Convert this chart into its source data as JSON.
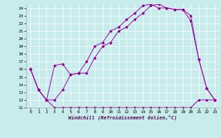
{
  "xlabel": "Windchill (Refroidissement éolien,°C)",
  "background_color": "#c8ecec",
  "line_color": "#990099",
  "xlim": [
    -0.5,
    23.5
  ],
  "ylim": [
    11,
    24.5
  ],
  "yticks": [
    11,
    12,
    13,
    14,
    15,
    16,
    17,
    18,
    19,
    20,
    21,
    22,
    23,
    24
  ],
  "xticks": [
    0,
    1,
    2,
    3,
    4,
    5,
    6,
    7,
    8,
    9,
    10,
    11,
    12,
    13,
    14,
    15,
    16,
    17,
    18,
    19,
    20,
    21,
    22,
    23
  ],
  "series": [
    {
      "x": [
        0,
        1,
        2,
        3,
        4,
        5,
        6,
        7,
        8,
        9,
        10,
        11,
        12,
        13,
        14,
        15,
        16,
        17,
        18,
        19,
        20,
        21,
        22,
        23
      ],
      "y": [
        16.0,
        13.3,
        12.0,
        11.0,
        11.0,
        11.0,
        11.0,
        11.0,
        11.0,
        11.0,
        11.0,
        11.0,
        11.0,
        11.0,
        11.0,
        11.0,
        11.0,
        11.0,
        11.0,
        11.0,
        11.0,
        12.0,
        12.0,
        12.0
      ]
    },
    {
      "x": [
        0,
        1,
        2,
        3,
        4,
        5,
        6,
        7,
        8,
        9,
        10,
        11,
        12,
        13,
        14,
        15,
        16,
        17,
        18,
        19,
        20,
        21,
        22,
        23
      ],
      "y": [
        16.0,
        13.3,
        12.0,
        12.0,
        13.3,
        15.3,
        15.5,
        15.5,
        17.5,
        19.0,
        19.5,
        21.0,
        21.5,
        22.5,
        23.3,
        24.3,
        24.5,
        24.0,
        23.8,
        23.8,
        22.3,
        17.3,
        13.5,
        12.0
      ]
    },
    {
      "x": [
        0,
        1,
        2,
        3,
        4,
        5,
        6,
        7,
        8,
        9,
        10,
        11,
        12,
        13,
        14,
        15,
        16,
        17,
        18,
        19,
        20,
        21,
        22,
        23
      ],
      "y": [
        16.0,
        13.3,
        12.0,
        16.5,
        16.7,
        15.3,
        15.5,
        17.0,
        19.0,
        19.5,
        21.0,
        21.5,
        22.5,
        23.3,
        24.3,
        24.5,
        24.0,
        24.0,
        23.8,
        23.8,
        23.0,
        17.3,
        13.5,
        12.0
      ]
    }
  ]
}
